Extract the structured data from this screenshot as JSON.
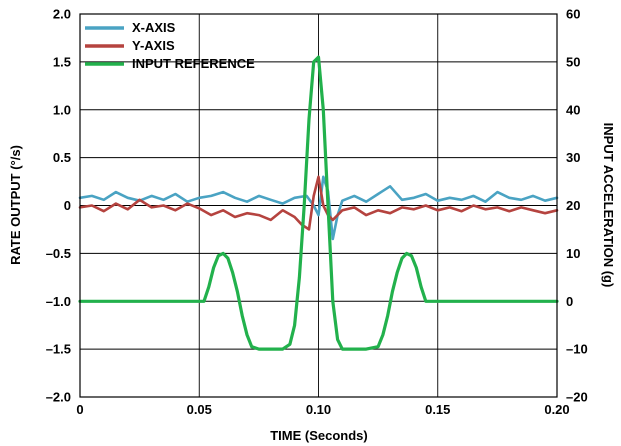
{
  "chart_data": {
    "type": "line",
    "xlabel": "TIME (Seconds)",
    "ylabel_left": "RATE OUTPUT (°/s)",
    "ylabel_right": "INPUT ACCELERATION (g)",
    "xlim": [
      0,
      0.2
    ],
    "ylim_left": [
      -2.0,
      2.0
    ],
    "ylim_right": [
      -20,
      60
    ],
    "x_ticks": [
      0,
      0.05,
      0.1,
      0.15,
      0.2
    ],
    "x_tick_labels": [
      "0",
      "0.05",
      "0.10",
      "0.15",
      "0.20"
    ],
    "y_left_ticks": [
      2.0,
      1.5,
      1.0,
      0.5,
      0,
      -0.5,
      -1.0,
      -1.5,
      -2.0
    ],
    "y_left_tick_labels": [
      "2.0",
      "1.5",
      "1.0",
      "0.5",
      "0",
      "–0.5",
      "–1.0",
      "–1.5",
      "–2.0"
    ],
    "y_right_ticks": [
      60,
      50,
      40,
      30,
      20,
      10,
      0,
      -10,
      -20
    ],
    "y_right_tick_labels": [
      "60",
      "50",
      "40",
      "30",
      "20",
      "10",
      "0",
      "–10",
      "–20"
    ],
    "grid": true,
    "legend_position": "top-left",
    "series": [
      {
        "name": "X-AXIS",
        "color": "#4aa3c3",
        "axis": "left",
        "x": [
          0,
          0.005,
          0.01,
          0.015,
          0.02,
          0.025,
          0.03,
          0.035,
          0.04,
          0.045,
          0.05,
          0.055,
          0.06,
          0.065,
          0.07,
          0.075,
          0.08,
          0.085,
          0.09,
          0.095,
          0.098,
          0.1,
          0.102,
          0.104,
          0.106,
          0.108,
          0.11,
          0.115,
          0.12,
          0.125,
          0.13,
          0.135,
          0.14,
          0.145,
          0.15,
          0.155,
          0.16,
          0.165,
          0.17,
          0.175,
          0.18,
          0.185,
          0.19,
          0.195,
          0.2
        ],
        "y": [
          0.08,
          0.1,
          0.06,
          0.14,
          0.08,
          0.05,
          0.1,
          0.06,
          0.12,
          0.04,
          0.08,
          0.1,
          0.14,
          0.08,
          0.04,
          0.1,
          0.06,
          0.02,
          0.08,
          0.1,
          0.0,
          -0.1,
          0.3,
          0.15,
          -0.35,
          -0.1,
          0.05,
          0.1,
          0.04,
          0.12,
          0.2,
          0.06,
          0.08,
          0.12,
          0.05,
          0.08,
          0.06,
          0.1,
          0.04,
          0.14,
          0.08,
          0.06,
          0.1,
          0.05,
          0.08
        ]
      },
      {
        "name": "Y-AXIS",
        "color": "#b5433f",
        "axis": "left",
        "x": [
          0,
          0.005,
          0.01,
          0.015,
          0.02,
          0.025,
          0.03,
          0.035,
          0.04,
          0.045,
          0.05,
          0.055,
          0.06,
          0.065,
          0.07,
          0.075,
          0.08,
          0.085,
          0.09,
          0.093,
          0.096,
          0.098,
          0.1,
          0.102,
          0.104,
          0.106,
          0.11,
          0.115,
          0.12,
          0.125,
          0.13,
          0.135,
          0.14,
          0.145,
          0.15,
          0.155,
          0.16,
          0.165,
          0.17,
          0.175,
          0.18,
          0.185,
          0.19,
          0.195,
          0.2
        ],
        "y": [
          -0.02,
          0.0,
          -0.06,
          0.02,
          -0.04,
          0.06,
          -0.02,
          0.0,
          -0.05,
          0.02,
          -0.03,
          -0.1,
          -0.05,
          -0.12,
          -0.08,
          -0.1,
          -0.15,
          -0.05,
          -0.12,
          -0.2,
          -0.25,
          0.1,
          0.3,
          0.0,
          -0.1,
          -0.15,
          -0.05,
          -0.02,
          -0.1,
          -0.05,
          -0.08,
          -0.02,
          -0.04,
          0.0,
          -0.05,
          -0.02,
          -0.06,
          0.0,
          -0.04,
          -0.02,
          -0.06,
          -0.02,
          -0.05,
          -0.08,
          -0.05
        ]
      },
      {
        "name": "INPUT REFERENCE",
        "color": "#22b14c",
        "axis": "right",
        "x": [
          0,
          0.05,
          0.052,
          0.054,
          0.056,
          0.058,
          0.06,
          0.062,
          0.064,
          0.066,
          0.068,
          0.07,
          0.072,
          0.075,
          0.08,
          0.085,
          0.088,
          0.09,
          0.092,
          0.094,
          0.096,
          0.098,
          0.1,
          0.102,
          0.104,
          0.106,
          0.108,
          0.11,
          0.115,
          0.12,
          0.125,
          0.127,
          0.129,
          0.131,
          0.133,
          0.135,
          0.137,
          0.139,
          0.141,
          0.143,
          0.145,
          0.147,
          0.15,
          0.2
        ],
        "y": [
          0,
          0,
          0,
          3,
          7,
          9.5,
          10,
          9,
          6,
          2,
          -3,
          -7,
          -9.5,
          -10,
          -10,
          -10,
          -9,
          -5,
          5,
          20,
          38,
          50,
          51,
          40,
          20,
          0,
          -8,
          -10,
          -10,
          -10,
          -9.5,
          -7,
          -3,
          2,
          6,
          9,
          10,
          9.5,
          7,
          3,
          0,
          0,
          0,
          0
        ]
      }
    ]
  }
}
